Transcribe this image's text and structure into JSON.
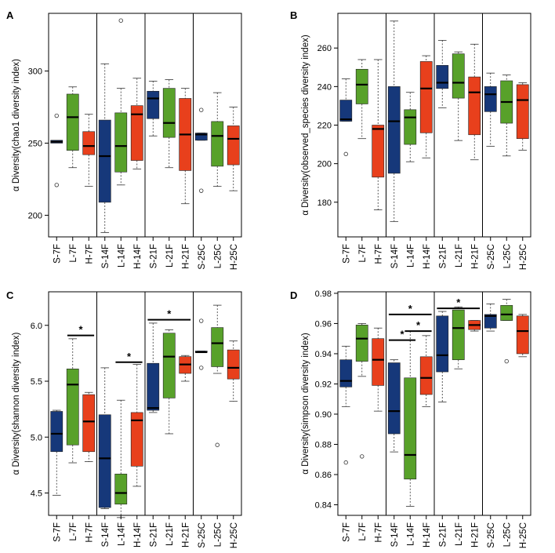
{
  "colors": {
    "S": "#16387a",
    "L": "#58a12a",
    "H": "#e8401c"
  },
  "chart_data": [
    {
      "type": "box",
      "panel_label": "A",
      "ylabel": "α Diversity(chao1 diversity index)",
      "ylim": [
        185,
        340
      ],
      "yticks": [
        200,
        250,
        300
      ],
      "categories": [
        "S-7F",
        "L-7F",
        "H-7F",
        "S-14F",
        "L-14F",
        "H-14F",
        "S-21F",
        "L-21F",
        "H-21F",
        "S-25C",
        "L-25C",
        "H-25C"
      ],
      "group_separators_after": [
        3,
        6,
        9
      ],
      "boxes": [
        {
          "g": "S",
          "wlo": 251,
          "q1": 250,
          "med": 251,
          "q3": 252,
          "whi": 251,
          "out": [
            269,
            221
          ]
        },
        {
          "g": "L",
          "wlo": 233,
          "q1": 245,
          "med": 268,
          "q3": 284,
          "whi": 289,
          "out": []
        },
        {
          "g": "H",
          "wlo": 220,
          "q1": 242,
          "med": 248,
          "q3": 258,
          "whi": 270,
          "out": []
        },
        {
          "g": "S",
          "wlo": 188,
          "q1": 209,
          "med": 241,
          "q3": 266,
          "whi": 305,
          "out": []
        },
        {
          "g": "L",
          "wlo": 221,
          "q1": 230,
          "med": 248,
          "q3": 271,
          "whi": 288,
          "out": [
            335
          ]
        },
        {
          "g": "H",
          "wlo": 232,
          "q1": 238,
          "med": 270,
          "q3": 276,
          "whi": 295,
          "out": []
        },
        {
          "g": "S",
          "wlo": 255,
          "q1": 267,
          "med": 281,
          "q3": 286,
          "whi": 293,
          "out": []
        },
        {
          "g": "L",
          "wlo": 233,
          "q1": 254,
          "med": 264,
          "q3": 288,
          "whi": 294,
          "out": []
        },
        {
          "g": "H",
          "wlo": 208,
          "q1": 231,
          "med": 256,
          "q3": 281,
          "whi": 288,
          "out": []
        },
        {
          "g": "S",
          "wlo": 252,
          "q1": 252,
          "med": 256,
          "q3": 257,
          "whi": 257,
          "out": [
            273,
            217
          ]
        },
        {
          "g": "L",
          "wlo": 220,
          "q1": 234,
          "med": 255,
          "q3": 265,
          "whi": 285,
          "out": []
        },
        {
          "g": "H",
          "wlo": 217,
          "q1": 235,
          "med": 253,
          "q3": 262,
          "whi": 275,
          "out": []
        }
      ],
      "significance": []
    },
    {
      "type": "box",
      "panel_label": "B",
      "ylabel": "α Diversity(observed_species diversity index)",
      "ylim": [
        162,
        278
      ],
      "yticks": [
        180,
        200,
        220,
        240,
        260
      ],
      "categories": [
        "S-7F",
        "L-7F",
        "H-7F",
        "S-14F",
        "L-14F",
        "H-14F",
        "S-21F",
        "L-21F",
        "H-21F",
        "S-25C",
        "L-25C",
        "H-25C"
      ],
      "group_separators_after": [
        3,
        6,
        9
      ],
      "boxes": [
        {
          "g": "S",
          "wlo": 222,
          "q1": 222,
          "med": 223,
          "q3": 233,
          "whi": 244,
          "out": [
            205
          ]
        },
        {
          "g": "L",
          "wlo": 213,
          "q1": 231,
          "med": 241,
          "q3": 249,
          "whi": 254,
          "out": []
        },
        {
          "g": "H",
          "wlo": 176,
          "q1": 193,
          "med": 218,
          "q3": 220,
          "whi": 254,
          "out": []
        },
        {
          "g": "S",
          "wlo": 170,
          "q1": 195,
          "med": 222,
          "q3": 240,
          "whi": 274,
          "out": []
        },
        {
          "g": "L",
          "wlo": 201,
          "q1": 210,
          "med": 224,
          "q3": 228,
          "whi": 237,
          "out": []
        },
        {
          "g": "H",
          "wlo": 203,
          "q1": 216,
          "med": 239,
          "q3": 253,
          "whi": 256,
          "out": []
        },
        {
          "g": "S",
          "wlo": 229,
          "q1": 239,
          "med": 242,
          "q3": 251,
          "whi": 264,
          "out": []
        },
        {
          "g": "L",
          "wlo": 212,
          "q1": 234,
          "med": 242,
          "q3": 257,
          "whi": 258,
          "out": []
        },
        {
          "g": "H",
          "wlo": 202,
          "q1": 215,
          "med": 237,
          "q3": 245,
          "whi": 262,
          "out": []
        },
        {
          "g": "S",
          "wlo": 209,
          "q1": 227,
          "med": 236,
          "q3": 240,
          "whi": 247,
          "out": []
        },
        {
          "g": "L",
          "wlo": 204,
          "q1": 221,
          "med": 232,
          "q3": 243,
          "whi": 246,
          "out": []
        },
        {
          "g": "H",
          "wlo": 207,
          "q1": 213,
          "med": 233,
          "q3": 241,
          "whi": 242,
          "out": []
        }
      ],
      "significance": []
    },
    {
      "type": "box",
      "panel_label": "C",
      "ylabel": "α Diversity(shannon diversity index)",
      "ylim": [
        4.3,
        6.3
      ],
      "yticks": [
        4.5,
        5.0,
        5.5,
        6.0
      ],
      "categories": [
        "S-7F",
        "L-7F",
        "H-7F",
        "S-14F",
        "L-14F",
        "H-14F",
        "S-21F",
        "L-21F",
        "H-21F",
        "S-25C",
        "L-25C",
        "H-25C"
      ],
      "group_separators_after": [
        3,
        6,
        9
      ],
      "boxes": [
        {
          "g": "S",
          "wlo": 4.48,
          "q1": 4.87,
          "med": 5.03,
          "q3": 5.23,
          "whi": 5.24,
          "out": []
        },
        {
          "g": "L",
          "wlo": 4.77,
          "q1": 4.93,
          "med": 5.47,
          "q3": 5.61,
          "whi": 5.88,
          "out": []
        },
        {
          "g": "H",
          "wlo": 4.78,
          "q1": 4.87,
          "med": 5.14,
          "q3": 5.38,
          "whi": 5.4,
          "out": []
        },
        {
          "g": "S",
          "wlo": 4.36,
          "q1": 4.37,
          "med": 4.81,
          "q3": 5.2,
          "whi": 5.62,
          "out": []
        },
        {
          "g": "L",
          "wlo": 4.28,
          "q1": 4.4,
          "med": 4.5,
          "q3": 4.67,
          "whi": 5.33,
          "out": []
        },
        {
          "g": "H",
          "wlo": 4.56,
          "q1": 4.74,
          "med": 5.15,
          "q3": 5.22,
          "whi": 5.65,
          "out": []
        },
        {
          "g": "S",
          "wlo": 5.22,
          "q1": 5.24,
          "med": 5.26,
          "q3": 5.66,
          "whi": 6.02,
          "out": []
        },
        {
          "g": "L",
          "wlo": 5.03,
          "q1": 5.35,
          "med": 5.72,
          "q3": 5.93,
          "whi": 5.96,
          "out": []
        },
        {
          "g": "H",
          "wlo": 5.5,
          "q1": 5.57,
          "med": 5.65,
          "q3": 5.72,
          "whi": 5.73,
          "out": []
        },
        {
          "g": "S",
          "wlo": 5.76,
          "q1": 5.76,
          "med": 5.76,
          "q3": 5.77,
          "whi": 5.77,
          "out": [
            6.04,
            5.62
          ]
        },
        {
          "g": "L",
          "wlo": 5.57,
          "q1": 5.63,
          "med": 5.84,
          "q3": 5.98,
          "whi": 6.18,
          "out": [
            4.93
          ]
        },
        {
          "g": "H",
          "wlo": 5.32,
          "q1": 5.52,
          "med": 5.62,
          "q3": 5.78,
          "whi": 5.86,
          "out": []
        }
      ],
      "significance": [
        {
          "from": 1,
          "to": 2,
          "value": 5.91,
          "label": "*"
        },
        {
          "from": 4,
          "to": 5,
          "value": 5.67,
          "label": "*"
        },
        {
          "from": 6,
          "to": 8,
          "value": 6.05,
          "label": "*"
        }
      ]
    },
    {
      "type": "box",
      "panel_label": "D",
      "ylabel": "α Diversity(simpson diversity index)",
      "ylim": [
        0.833,
        0.981
      ],
      "yticks": [
        0.84,
        0.86,
        0.88,
        0.9,
        0.92,
        0.94,
        0.96,
        0.98
      ],
      "ytick_decimals": 2,
      "categories": [
        "S-7F",
        "L-7F",
        "H-7F",
        "S-14F",
        "L-14F",
        "H-14F",
        "S-21F",
        "L-21F",
        "H-21F",
        "S-25C",
        "L-25C",
        "H-25C"
      ],
      "group_separators_after": [
        3,
        6,
        9
      ],
      "boxes": [
        {
          "g": "S",
          "wlo": 0.905,
          "q1": 0.918,
          "med": 0.922,
          "q3": 0.936,
          "whi": 0.945,
          "out": [
            0.868
          ]
        },
        {
          "g": "L",
          "wlo": 0.925,
          "q1": 0.935,
          "med": 0.95,
          "q3": 0.959,
          "whi": 0.96,
          "out": [
            0.872
          ]
        },
        {
          "g": "H",
          "wlo": 0.902,
          "q1": 0.919,
          "med": 0.936,
          "q3": 0.95,
          "whi": 0.957,
          "out": []
        },
        {
          "g": "S",
          "wlo": 0.875,
          "q1": 0.887,
          "med": 0.902,
          "q3": 0.934,
          "whi": 0.936,
          "out": []
        },
        {
          "g": "L",
          "wlo": 0.839,
          "q1": 0.857,
          "med": 0.873,
          "q3": 0.924,
          "whi": 0.955,
          "out": []
        },
        {
          "g": "H",
          "wlo": 0.905,
          "q1": 0.913,
          "med": 0.924,
          "q3": 0.938,
          "whi": 0.952,
          "out": []
        },
        {
          "g": "S",
          "wlo": 0.908,
          "q1": 0.928,
          "med": 0.939,
          "q3": 0.965,
          "whi": 0.968,
          "out": []
        },
        {
          "g": "L",
          "wlo": 0.93,
          "q1": 0.936,
          "med": 0.957,
          "q3": 0.969,
          "whi": 0.971,
          "out": []
        },
        {
          "g": "H",
          "wlo": 0.955,
          "q1": 0.956,
          "med": 0.959,
          "q3": 0.962,
          "whi": 0.962,
          "out": []
        },
        {
          "g": "S",
          "wlo": 0.955,
          "q1": 0.957,
          "med": 0.965,
          "q3": 0.966,
          "whi": 0.973,
          "out": []
        },
        {
          "g": "L",
          "wlo": 0.962,
          "q1": 0.962,
          "med": 0.966,
          "q3": 0.972,
          "whi": 0.976,
          "out": [
            0.935
          ]
        },
        {
          "g": "H",
          "wlo": 0.938,
          "q1": 0.94,
          "med": 0.955,
          "q3": 0.965,
          "whi": 0.966,
          "out": []
        }
      ],
      "significance": [
        {
          "from": 3,
          "to": 5,
          "value": 0.966,
          "label": "*"
        },
        {
          "from": 4,
          "to": 5,
          "value": 0.955,
          "label": "*"
        },
        {
          "from": 3,
          "to": 4,
          "value": 0.949,
          "label": "*"
        },
        {
          "from": 6,
          "to": 8,
          "value": 0.97,
          "label": "*"
        }
      ]
    }
  ]
}
